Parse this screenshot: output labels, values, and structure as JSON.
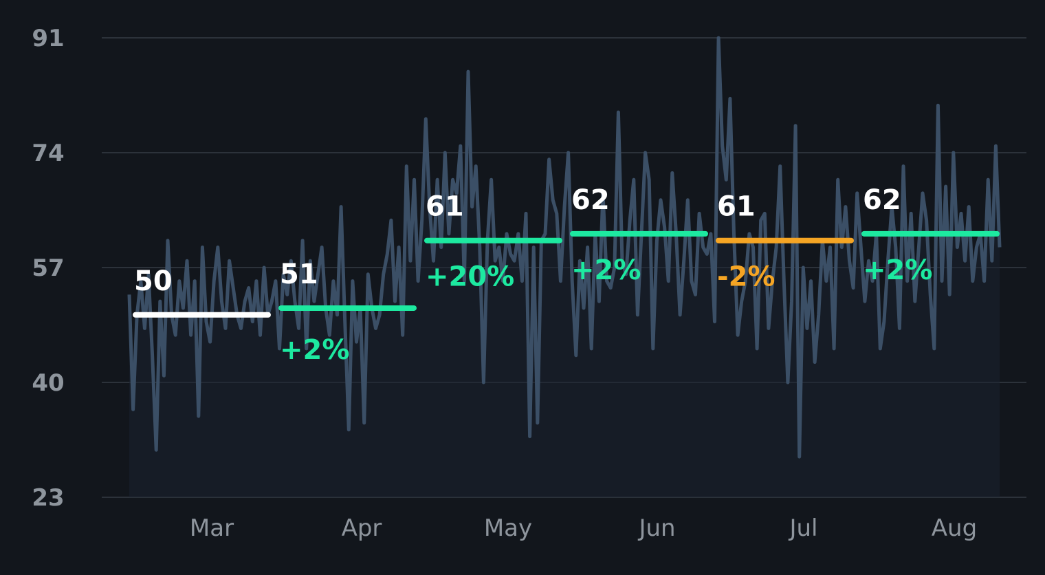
{
  "chart_data": {
    "type": "line",
    "title": "",
    "xlabel": "",
    "ylabel": "",
    "ylim": [
      23,
      91
    ],
    "y_ticks": [
      "91",
      "74",
      "57",
      "40",
      "23"
    ],
    "x_ticks": [
      "Mar",
      "Apr",
      "May",
      "Jun",
      "Jul",
      "Aug"
    ],
    "grid": true,
    "line_color": "#3b4f66",
    "colors": {
      "positive": "#1de9a0",
      "negative": "#f5a524",
      "baseline": "#ffffff",
      "grid": "#2c323a",
      "tick": "#8e959d"
    },
    "series": [
      {
        "values": [
          53,
          36,
          50,
          55,
          48,
          56,
          44,
          30,
          52,
          41,
          61,
          50,
          47,
          55,
          51,
          58,
          47,
          55,
          35,
          60,
          49,
          46,
          55,
          60,
          52,
          48,
          58,
          54,
          50,
          48,
          52,
          54,
          49,
          55,
          47,
          57,
          50,
          52,
          55,
          45,
          56,
          53,
          58,
          52,
          48,
          61,
          45,
          58,
          52,
          56,
          60,
          51,
          47,
          55,
          50,
          66,
          49,
          33,
          55,
          46,
          51,
          34,
          56,
          51,
          48,
          50,
          56,
          59,
          64,
          52,
          60,
          47,
          72,
          58,
          70,
          55,
          64,
          79,
          66,
          58,
          70,
          60,
          74,
          62,
          70,
          68,
          75,
          55,
          86,
          66,
          72,
          60,
          40,
          61,
          70,
          58,
          60,
          55,
          62,
          59,
          58,
          62,
          55,
          65,
          32,
          60,
          34,
          61,
          62,
          73,
          67,
          65,
          55,
          66,
          74,
          55,
          44,
          58,
          51,
          60,
          45,
          62,
          52,
          68,
          55,
          54,
          57,
          80,
          58,
          56,
          64,
          70,
          50,
          62,
          74,
          70,
          45,
          61,
          67,
          63,
          55,
          71,
          62,
          50,
          58,
          67,
          55,
          53,
          65,
          60,
          59,
          62,
          49,
          91,
          75,
          70,
          82,
          62,
          47,
          52,
          55,
          62,
          60,
          45,
          64,
          65,
          48,
          55,
          60,
          72,
          55,
          40,
          52,
          78,
          29,
          57,
          48,
          55,
          43,
          50,
          61,
          55,
          60,
          45,
          70,
          60,
          66,
          58,
          54,
          68,
          60,
          52,
          58,
          55,
          62,
          45,
          49,
          58,
          66,
          60,
          48,
          72,
          55,
          65,
          52,
          60,
          68,
          64,
          53,
          45,
          81,
          55,
          69,
          53,
          74,
          60,
          65,
          58,
          66,
          55,
          60,
          62,
          55,
          70,
          58,
          75,
          60
        ]
      }
    ],
    "segments": [
      {
        "month": "Feb-Mar",
        "average": "50",
        "change": ""
      },
      {
        "month": "Mar-Apr",
        "average": "51",
        "change": "+2%"
      },
      {
        "month": "Apr-May",
        "average": "61",
        "change": "+20%"
      },
      {
        "month": "May-Jun",
        "average": "62",
        "change": "+2%"
      },
      {
        "month": "Jun-Jul",
        "average": "61",
        "change": "-2%"
      },
      {
        "month": "Jul-Aug",
        "average": "62",
        "change": "+2%"
      }
    ],
    "segment_averages": [
      50,
      51,
      61,
      62,
      61,
      62
    ],
    "segment_trend": [
      "base",
      "up",
      "up",
      "up",
      "down",
      "up"
    ]
  }
}
